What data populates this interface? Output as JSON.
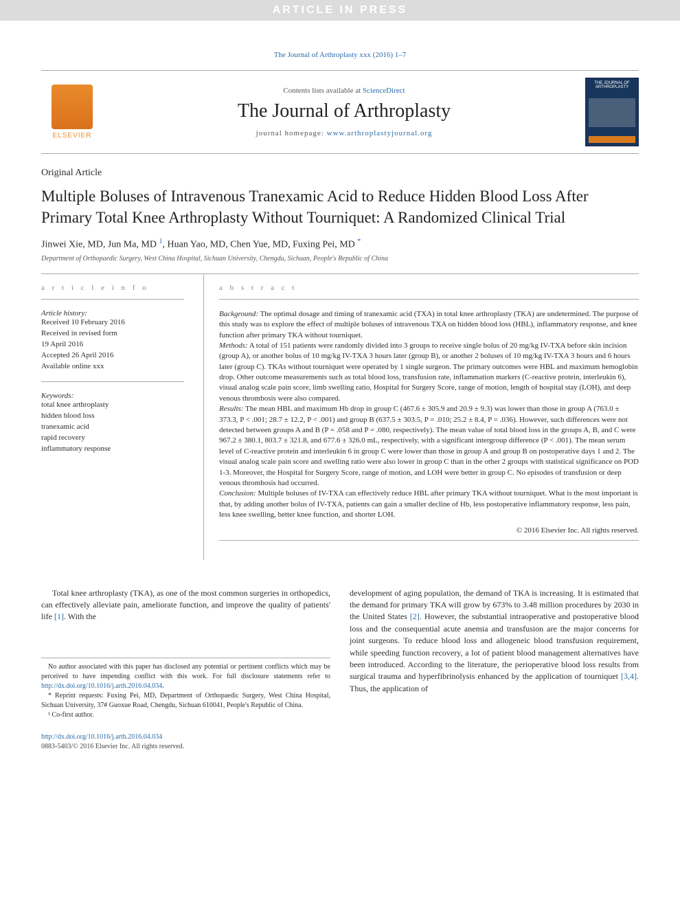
{
  "banner": {
    "text": "ARTICLE IN PRESS"
  },
  "citation": "The Journal of Arthroplasty xxx (2016) 1–7",
  "header": {
    "contents_prefix": "Contents lists available at ",
    "contents_link": "ScienceDirect",
    "journal_name": "The Journal of Arthroplasty",
    "homepage_prefix": "journal homepage: ",
    "homepage_link": "www.arthroplastyjournal.org",
    "elsevier_label": "ELSEVIER",
    "cover_title": "THE JOURNAL OF ARTHROPLASTY"
  },
  "article": {
    "type": "Original Article",
    "title": "Multiple Boluses of Intravenous Tranexamic Acid to Reduce Hidden Blood Loss After Primary Total Knee Arthroplasty Without Tourniquet: A Randomized Clinical Trial",
    "authors": "Jinwei Xie, MD, Jun Ma, MD ",
    "author_sup1": "1",
    "authors2": ", Huan Yao, MD, Chen Yue, MD, Fuxing Pei, MD ",
    "author_sup2": "*",
    "affiliation": "Department of Orthopaedic Surgery, West China Hospital, Sichuan University, Chengdu, Sichuan, People's Republic of China"
  },
  "info": {
    "section_label": "a r t i c l e   i n f o",
    "history_label": "Article history:",
    "history": "Received 10 February 2016\nReceived in revised form\n19 April 2016\nAccepted 26 April 2016\nAvailable online xxx",
    "keywords_label": "Keywords:",
    "keywords": "total knee arthroplasty\nhidden blood loss\ntranexamic acid\nrapid recovery\ninflammatory response"
  },
  "abstract": {
    "section_label": "a b s t r a c t",
    "background_label": "Background:",
    "background": " The optimal dosage and timing of tranexamic acid (TXA) in total knee arthroplasty (TKA) are undetermined. The purpose of this study was to explore the effect of multiple boluses of intravenous TXA on hidden blood loss (HBL), inflammatory response, and knee function after primary TKA without tourniquet.",
    "methods_label": "Methods:",
    "methods": " A total of 151 patients were randomly divided into 3 groups to receive single bolus of 20 mg/kg IV-TXA before skin incision (group A), or another bolus of 10 mg/kg IV-TXA 3 hours later (group B), or another 2 boluses of 10 mg/kg IV-TXA 3 hours and 6 hours later (group C). TKAs without tourniquet were operated by 1 single surgeon. The primary outcomes were HBL and maximum hemoglobin drop. Other outcome measurements such as total blood loss, transfusion rate, inflammation markers (C-reactive protein, interleukin 6), visual analog scale pain score, limb swelling ratio, Hospital for Surgery Score, range of motion, length of hospital stay (LOH), and deep venous thrombosis were also compared.",
    "results_label": "Results:",
    "results": " The mean HBL and maximum Hb drop in group C (467.6 ± 305.9 and 20.9 ± 9.3) was lower than those in group A (763.0 ± 373.3, P < .001; 28.7 ± 12.2, P < .001) and group B (637.5 ± 303.5, P = .010; 25.2 ± 8.4, P = .036). However, such differences were not detected between groups A and B (P = .058 and P = .080, respectively). The mean value of total blood loss in the groups A, B, and C were 967.2 ± 380.1, 803.7 ± 321.8, and 677.6 ± 326.0 mL, respectively, with a significant intergroup difference (P < .001). The mean serum level of C-reactive protein and interleukin 6 in group C were lower than those in group A and group B on postoperative days 1 and 2. The visual analog scale pain score and swelling ratio were also lower in group C than in the other 2 groups with statistical significance on POD 1-3. Moreover, the Hospital for Surgery Score, range of motion, and LOH were better in group C. No episodes of transfusion or deep venous thrombosis had occurred.",
    "conclusion_label": "Conclusion:",
    "conclusion": " Multiple boluses of IV-TXA can effectively reduce HBL after primary TKA without tourniquet. What is the most important is that, by adding another bolus of IV-TXA, patients can gain a smaller decline of Hb, less postoperative inflammatory response, less pain, less knee swelling, better knee function, and shorter LOH.",
    "copyright": "© 2016 Elsevier Inc. All rights reserved."
  },
  "body": {
    "left_p1_a": "Total knee arthroplasty (TKA), as one of the most common surgeries in orthopedics, can effectively alleviate pain, ameliorate function, and improve the quality of patients' life ",
    "left_ref1": "[1]",
    "left_p1_b": ". With the",
    "right_p1_a": "development of aging population, the demand of TKA is increasing. It is estimated that the demand for primary TKA will grow by 673% to 3.48 million procedures by 2030 in the United States ",
    "right_ref2": "[2]",
    "right_p1_b": ". However, the substantial intraoperative and postoperative blood loss and the consequential acute anemia and transfusion are the major concerns for joint surgeons. To reduce blood loss and allogeneic blood transfusion requirement, while speeding function recovery, a lot of patient blood management alternatives have been introduced. According to the literature, the perioperative blood loss results from surgical trauma and hyperfibrinolysis enhanced by the application of tourniquet ",
    "right_ref34": "[3,4]",
    "right_p1_c": ". Thus, the application of"
  },
  "footnotes": {
    "conflict_a": "No author associated with this paper has disclosed any potential or pertinent conflicts which may be perceived to have impending conflict with this work. For full disclosure statements refer to ",
    "conflict_link": "http://dx.doi.org/10.1016/j.arth.2016.04.034",
    "conflict_b": ".",
    "reprint": "* Reprint requests: Fuxing Pei, MD, Department of Orthopaedic Surgery, West China Hospital, Sichuan University, 37# Guoxue Road, Chengdu, Sichuan 610041, People's Republic of China.",
    "cofirst": "¹ Co-first author."
  },
  "doi": {
    "link": "http://dx.doi.org/10.1016/j.arth.2016.04.034",
    "issn": "0883-5403/© 2016 Elsevier Inc. All rights reserved."
  },
  "colors": {
    "link": "#2a6aa8",
    "banner_bg": "#dcdcdc",
    "elsevier_orange": "#ea8a2c",
    "cover_blue": "#18355c"
  }
}
